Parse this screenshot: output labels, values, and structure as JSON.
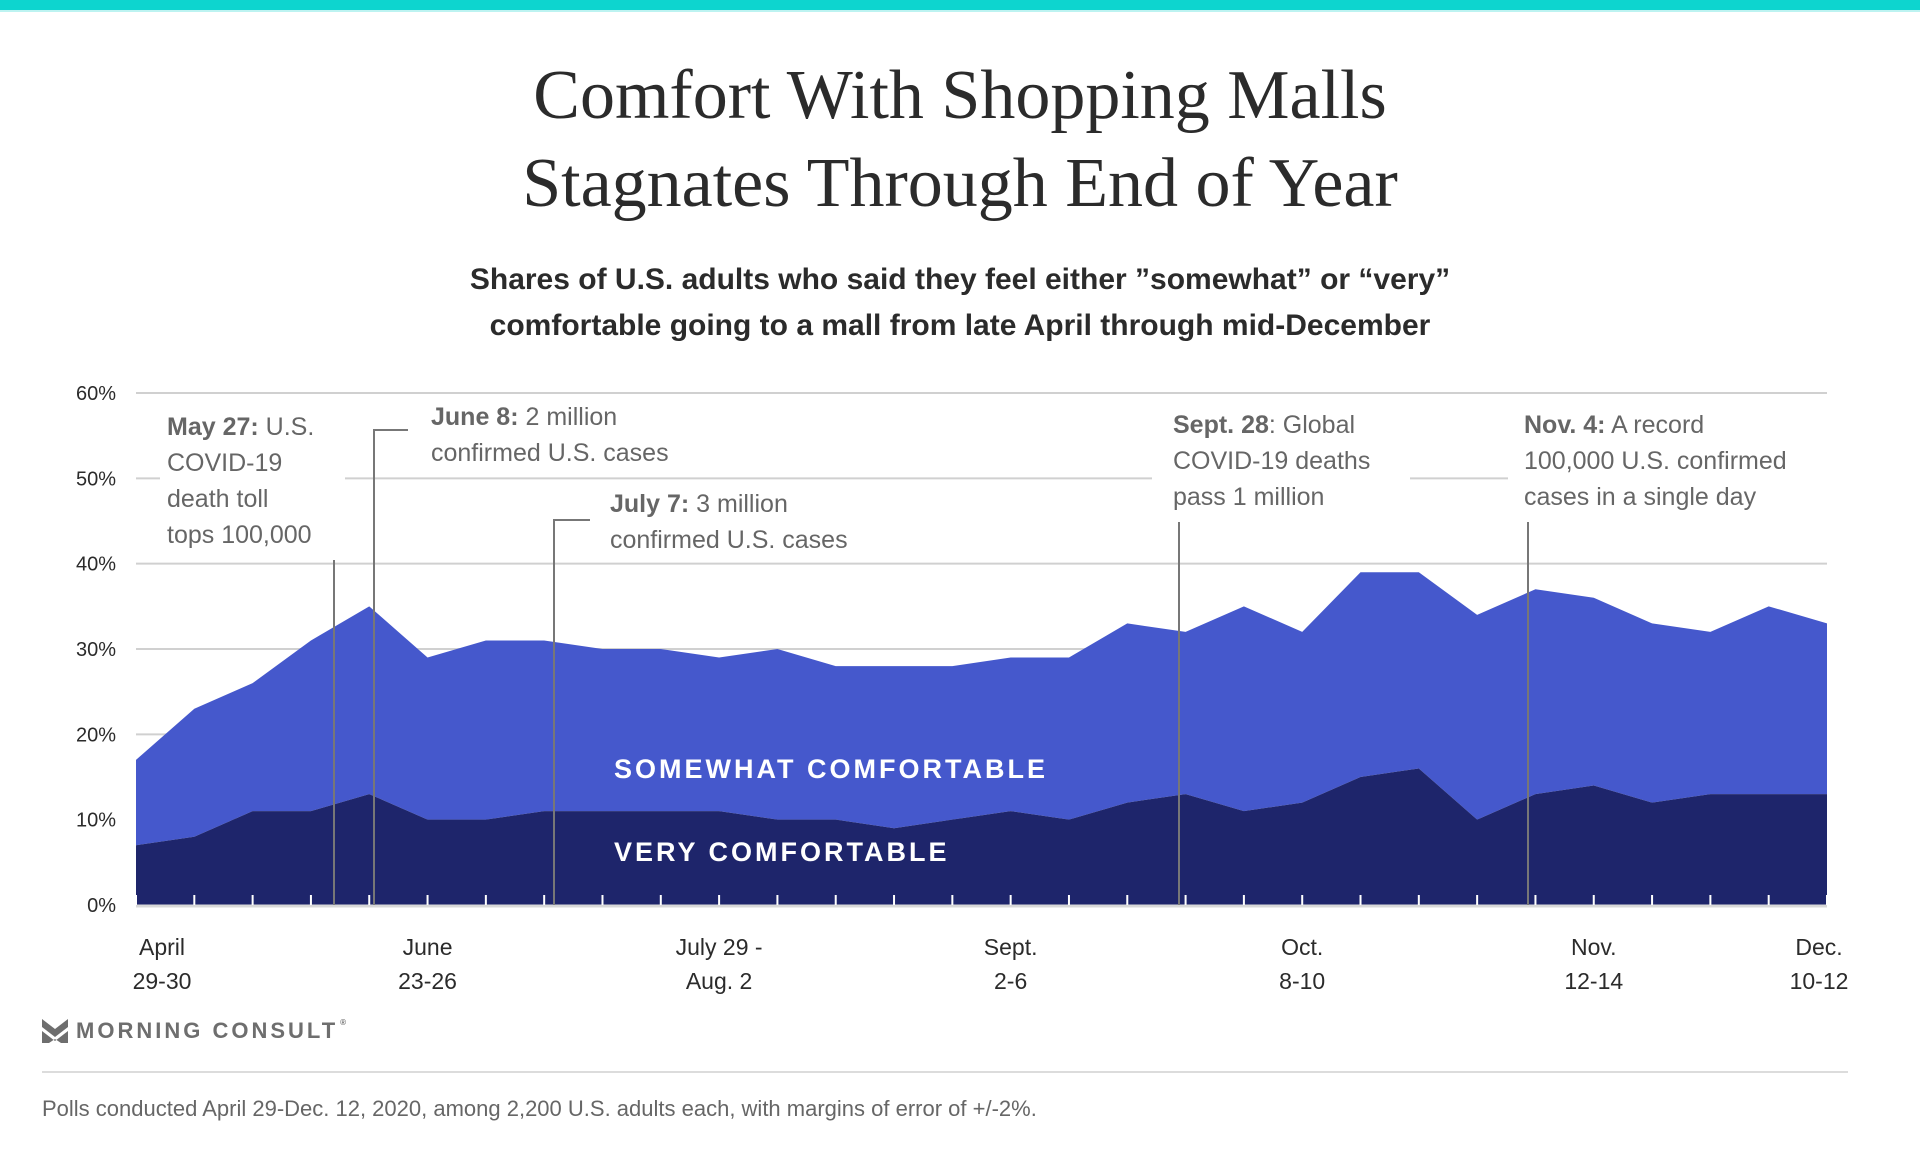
{
  "header": {
    "title_line1": "Comfort With Shopping Malls",
    "title_line2": "Stagnates Through End of Year",
    "subtitle_line1": "Shares of U.S. adults who said they feel either ”somewhat” or “very”",
    "subtitle_line2": "comfortable going to a mall from late April through mid-December"
  },
  "colors": {
    "accent_bar": "#0DD5CF",
    "somewhat": "#4558CC",
    "very": "#1E256B",
    "gridline": "#d0d0d0",
    "annotation": "#666666"
  },
  "chart_data": {
    "type": "area",
    "stacked": true,
    "title": "Comfort With Shopping Malls Stagnates Through End of Year",
    "subtitle": "Shares of U.S. adults who said they feel either ”somewhat” or “very” comfortable going to a mall from late April through mid-December",
    "xlabel": "",
    "ylabel": "",
    "ylim": [
      0,
      60
    ],
    "yticks": [
      0,
      10,
      20,
      30,
      40,
      50,
      60
    ],
    "ytick_labels": [
      "0%",
      "10%",
      "20%",
      "30%",
      "40%",
      "50%",
      "60%"
    ],
    "grid": true,
    "n_points": 30,
    "x_labels": [
      {
        "index": 0,
        "line1": "April",
        "line2": "29-30"
      },
      {
        "index": 5,
        "line1": "June",
        "line2": "23-26"
      },
      {
        "index": 10,
        "line1": "July 29 -",
        "line2": "Aug. 2"
      },
      {
        "index": 15,
        "line1": "Sept.",
        "line2": "2-6"
      },
      {
        "index": 20,
        "line1": "Oct.",
        "line2": "8-10"
      },
      {
        "index": 25,
        "line1": "Nov.",
        "line2": "12-14"
      },
      {
        "index": 29,
        "line1": "Dec.",
        "line2": "10-12"
      }
    ],
    "series": [
      {
        "name": "Very comfortable",
        "label": "VERY COMFORTABLE",
        "values": [
          7,
          8,
          11,
          11,
          13,
          10,
          10,
          11,
          11,
          11,
          11,
          10,
          10,
          9,
          10,
          11,
          10,
          12,
          13,
          11,
          12,
          15,
          16,
          10,
          13,
          14,
          12,
          13,
          13,
          13
        ]
      },
      {
        "name": "Somewhat comfortable",
        "label": "SOMEWHAT COMFORTABLE",
        "values": [
          10,
          15,
          15,
          20,
          22,
          19,
          21,
          20,
          19,
          19,
          18,
          20,
          18,
          19,
          18,
          18,
          19,
          21,
          19,
          24,
          20,
          24,
          23,
          24,
          24,
          22,
          21,
          19,
          22,
          20
        ]
      }
    ],
    "totals": [
      17,
      23,
      26,
      31,
      35,
      29,
      31,
      31,
      30,
      30,
      29,
      30,
      28,
      28,
      28,
      29,
      29,
      33,
      32,
      35,
      32,
      39,
      39,
      34,
      37,
      36,
      33,
      32,
      35,
      33
    ],
    "annotations": [
      {
        "bold": "May 27:",
        "lines": [
          " U.S.",
          "COVID-19",
          "death toll",
          "tops 100,000"
        ],
        "at_index": 3.6
      },
      {
        "bold": "June 8:",
        "lines": [
          " 2 million",
          "confirmed U.S. cases"
        ],
        "at_index": 4.3
      },
      {
        "bold": "July 7:",
        "lines": [
          " 3 million",
          "confirmed U.S. cases"
        ],
        "at_index": 7.3
      },
      {
        "bold": "Sept. 28",
        "lines": [
          ": Global",
          "COVID-19 deaths",
          "pass 1 million"
        ],
        "at_index": 17.9
      },
      {
        "bold": "Nov. 4:",
        "lines": [
          " A record",
          "100,000 U.S. confirmed",
          "cases in a single day"
        ],
        "at_index": 23.9
      }
    ]
  },
  "footer": {
    "brand": "MORNING CONSULT",
    "brand_mark": "®",
    "note": "Polls conducted April 29-Dec. 12, 2020, among 2,200 U.S. adults each, with margins of error of +/-2%."
  }
}
